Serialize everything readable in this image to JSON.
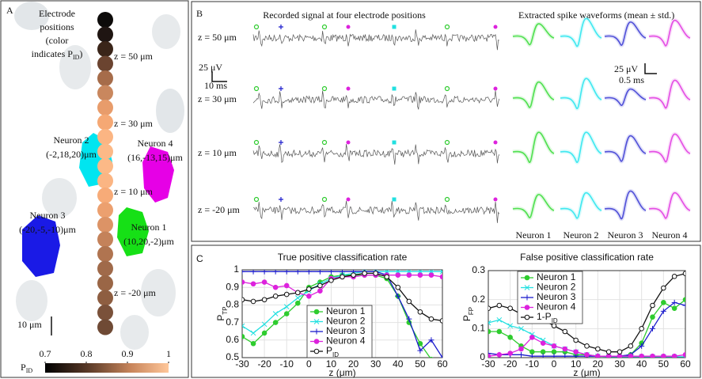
{
  "panel_a": {
    "label": "A",
    "title_lines": [
      "Electrode",
      "positions",
      "(color",
      "indicates P"
    ],
    "title_sub": "ID",
    "title_close": ")",
    "z_labels": [
      "z = 50 μm",
      "z = 30 μm",
      "z = 10 μm",
      "z = -20 μm"
    ],
    "neurons": [
      {
        "name": "Neuron 2",
        "pos": "(-2,18,20)μm"
      },
      {
        "name": "Neuron 4",
        "pos": "(16,-13,15)μm"
      },
      {
        "name": "Neuron 3",
        "pos": "(-20,-5,-10)μm"
      },
      {
        "name": "Neuron 1",
        "pos": "(10,20,-2)μm"
      }
    ],
    "scale": "10 μm",
    "colorbar": {
      "label": "P",
      "sub": "ID",
      "ticks": [
        0.7,
        0.8,
        0.9,
        1
      ],
      "lim": [
        0.7,
        1
      ]
    }
  },
  "panel_b": {
    "label": "B",
    "title_left": "Recorded signal at four electrode positions",
    "title_right": "Extracted spike waveforms (mean ± std.)",
    "z_labels": [
      "z = 50 μm",
      "z = 30 μm",
      "z = 10 μm",
      "z = -20 μm"
    ],
    "scale_left": [
      "25 μV",
      "10 ms"
    ],
    "scale_right": [
      "25 μV",
      "0.5 ms"
    ],
    "neurons": [
      "Neuron 1",
      "Neuron 2",
      "Neuron 3",
      "Neuron 4"
    ]
  },
  "panel_c": {
    "label": "C"
  },
  "chart_data": [
    {
      "type": "line",
      "title": "True positive classification rate",
      "x_label": "z (μm)",
      "y_label": "P",
      "y_label_sub": "TP",
      "x": [
        -30,
        -25,
        -20,
        -15,
        -10,
        -5,
        0,
        5,
        10,
        15,
        20,
        25,
        30,
        35,
        40,
        45,
        50,
        55,
        60
      ],
      "xlim": [
        -30,
        60
      ],
      "xticks": [
        -30,
        -20,
        -10,
        0,
        10,
        20,
        30,
        40,
        50,
        60
      ],
      "ylim": [
        0.5,
        1
      ],
      "yticks": [
        0.5,
        0.6,
        0.7,
        0.8,
        0.9,
        1
      ],
      "grid": true,
      "series": [
        {
          "name": "Neuron 1",
          "color": "#2ecc2e",
          "marker": "o",
          "filled": true,
          "values": [
            0.62,
            0.58,
            0.64,
            0.7,
            0.75,
            0.81,
            0.9,
            0.93,
            0.96,
            0.97,
            0.97,
            0.97,
            0.97,
            0.95,
            0.85,
            0.7,
            0.58,
            0.49,
            null
          ]
        },
        {
          "name": "Neuron 2",
          "color": "#22e0e0",
          "marker": "x",
          "filled": false,
          "values": [
            0.68,
            0.64,
            0.69,
            0.75,
            0.79,
            0.84,
            0.88,
            0.92,
            0.95,
            0.97,
            0.98,
            0.99,
            0.99,
            0.99,
            0.99,
            0.99,
            0.99,
            0.99,
            0.99
          ]
        },
        {
          "name": "Neuron 3",
          "color": "#1a1acc",
          "marker": "+",
          "filled": false,
          "values": [
            0.99,
            0.99,
            0.99,
            0.99,
            0.99,
            0.99,
            0.99,
            0.99,
            0.99,
            0.99,
            0.99,
            0.99,
            0.99,
            0.97,
            0.85,
            0.72,
            0.54,
            0.6,
            0.5
          ]
        },
        {
          "name": "Neuron 4",
          "color": "#dd22dd",
          "marker": "o",
          "filled": true,
          "values": [
            0.93,
            0.92,
            0.93,
            0.9,
            0.91,
            0.87,
            0.85,
            0.88,
            0.95,
            0.96,
            0.96,
            0.97,
            0.97,
            0.97,
            0.97,
            0.97,
            0.97,
            0.97,
            0.96
          ]
        },
        {
          "name": "P",
          "name_sub": "ID",
          "color": "#111111",
          "marker": "o",
          "filled": false,
          "values": [
            0.83,
            0.82,
            0.83,
            0.85,
            0.86,
            0.87,
            0.89,
            0.91,
            0.94,
            0.96,
            0.97,
            0.98,
            0.98,
            0.96,
            0.9,
            0.82,
            0.76,
            0.72,
            0.71
          ]
        }
      ]
    },
    {
      "type": "line",
      "title": "False positive classification rate",
      "x_label": "z (μm)",
      "y_label": "P",
      "y_label_sub": "FP",
      "x": [
        -30,
        -25,
        -20,
        -15,
        -10,
        -5,
        0,
        5,
        10,
        15,
        20,
        25,
        30,
        35,
        40,
        45,
        50,
        55,
        60
      ],
      "xlim": [
        -30,
        60
      ],
      "xticks": [
        -30,
        -20,
        -10,
        0,
        10,
        20,
        30,
        40,
        50,
        60
      ],
      "ylim": [
        0,
        0.3
      ],
      "yticks": [
        0,
        0.1,
        0.2,
        0.3
      ],
      "grid": true,
      "series": [
        {
          "name": "Neuron 1",
          "color": "#2ecc2e",
          "marker": "o",
          "filled": true,
          "values": [
            0.09,
            0.09,
            0.07,
            0.04,
            0.02,
            0.02,
            0.02,
            0.02,
            0.01,
            0.01,
            0.005,
            0.005,
            0.005,
            0.01,
            0.05,
            0.14,
            0.19,
            0.17,
            0.2
          ]
        },
        {
          "name": "Neuron 2",
          "color": "#22e0e0",
          "marker": "x",
          "filled": false,
          "values": [
            0.12,
            0.13,
            0.11,
            0.1,
            0.08,
            0.06,
            0.04,
            0.03,
            0.02,
            0.01,
            0.005,
            0.003,
            0.003,
            0.003,
            0.003,
            0.003,
            0.003,
            0.003,
            0.003
          ]
        },
        {
          "name": "Neuron 3",
          "color": "#1a1acc",
          "marker": "+",
          "filled": false,
          "values": [
            0.015,
            0.01,
            0.01,
            0.01,
            0.005,
            0.005,
            0.005,
            0.005,
            0.005,
            0.005,
            0.005,
            0.005,
            0.005,
            0.01,
            0.04,
            0.1,
            0.16,
            0.19,
            0.18
          ]
        },
        {
          "name": "Neuron 4",
          "color": "#dd22dd",
          "marker": "o",
          "filled": true,
          "values": [
            0.005,
            0.01,
            0.015,
            0.03,
            0.07,
            0.05,
            0.04,
            0.03,
            0.02,
            0.01,
            0.005,
            0.005,
            0.005,
            0.005,
            0.005,
            0.005,
            0.005,
            0.005,
            0.01
          ]
        },
        {
          "name": "1-P",
          "name_sub": "ID",
          "color": "#111111",
          "marker": "o",
          "filled": false,
          "values": [
            0.17,
            0.18,
            0.17,
            0.15,
            0.14,
            0.13,
            0.11,
            0.09,
            0.06,
            0.04,
            0.03,
            0.02,
            0.02,
            0.04,
            0.1,
            0.18,
            0.24,
            0.28,
            0.29
          ]
        }
      ]
    }
  ]
}
